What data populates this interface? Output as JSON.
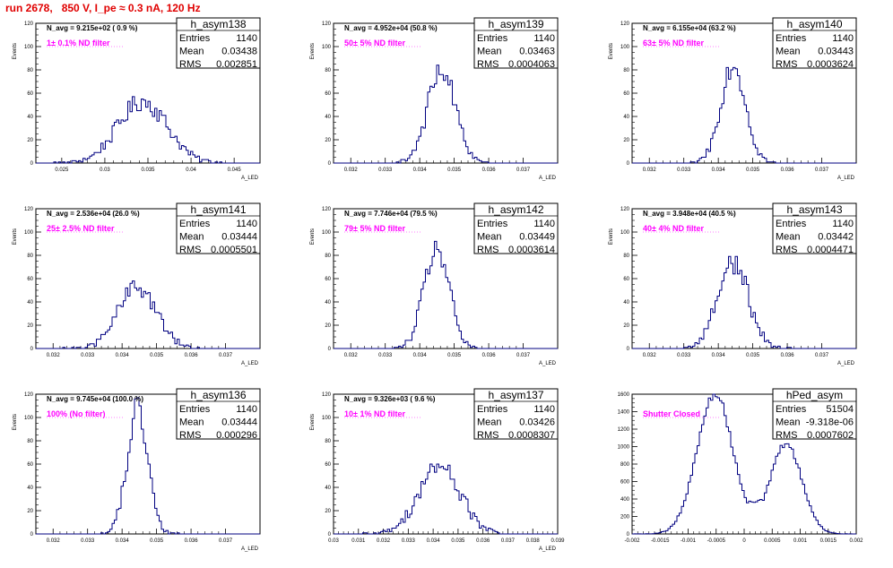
{
  "page": {
    "title": "run 2678,   850 V, I_pe ≈ 0.3 nA, 120 Hz",
    "title_color": "#e00000"
  },
  "colors": {
    "hist": "#000080",
    "annotation": "#ff00ff",
    "frame": "#000000"
  },
  "chart_data": [
    {
      "type": "histogram",
      "name": "h_asym138",
      "ylabel": "Events",
      "xlabel": "A_LED",
      "stats": {
        "Entries": "1140",
        "Mean": "0.03438",
        "RMS": "0.002851"
      },
      "n_avg_text": "N_avg = 9.215e+02 ( 0.9 %)",
      "annotation": "1± 0.1% ND filter",
      "xlim": [
        0.022,
        0.048
      ],
      "ylim": [
        0,
        120
      ],
      "xticks": [
        "0.025",
        "0.03",
        "0.035",
        "0.04",
        "0.045"
      ],
      "xtick_values": [
        0.025,
        0.03,
        0.035,
        0.04,
        0.045
      ],
      "yticks": [
        "0",
        "20",
        "40",
        "60",
        "80",
        "100",
        "120"
      ],
      "ytick_values": [
        0,
        20,
        40,
        60,
        80,
        100,
        120
      ],
      "dist": {
        "mean": 0.03438,
        "rms": 0.002851,
        "entries": 1140,
        "peak": 53
      }
    },
    {
      "type": "histogram",
      "name": "h_asym139",
      "ylabel": "Events",
      "xlabel": "A_LED",
      "stats": {
        "Entries": "1140",
        "Mean": "0.03463",
        "RMS": "0.0004063"
      },
      "n_avg_text": "N_avg = 4.952e+04 (50.8 %)",
      "annotation": "50± 5% ND filter",
      "xlim": [
        0.0315,
        0.038
      ],
      "ylim": [
        0,
        120
      ],
      "xticks": [
        "0.032",
        "0.033",
        "0.034",
        "0.035",
        "0.036",
        "0.037"
      ],
      "xtick_values": [
        0.032,
        0.033,
        0.034,
        0.035,
        0.036,
        0.037
      ],
      "yticks": [
        "0",
        "20",
        "40",
        "60",
        "80",
        "100",
        "120"
      ],
      "ytick_values": [
        0,
        20,
        40,
        60,
        80,
        100,
        120
      ],
      "dist": {
        "mean": 0.03463,
        "rms": 0.0004063,
        "entries": 1140,
        "peak": 79
      }
    },
    {
      "type": "histogram",
      "name": "h_asym140",
      "ylabel": "Events",
      "xlabel": "A_LED",
      "stats": {
        "Entries": "1140",
        "Mean": "0.03443",
        "RMS": "0.0003624"
      },
      "n_avg_text": "N_avg = 6.155e+04 (63.2 %)",
      "annotation": "63± 5% ND filter",
      "xlim": [
        0.0315,
        0.038
      ],
      "ylim": [
        0,
        120
      ],
      "xticks": [
        "0.032",
        "0.033",
        "0.034",
        "0.035",
        "0.036",
        "0.037"
      ],
      "xtick_values": [
        0.032,
        0.033,
        0.034,
        0.035,
        0.036,
        0.037
      ],
      "yticks": [
        "0",
        "20",
        "40",
        "60",
        "80",
        "100",
        "120"
      ],
      "ytick_values": [
        0,
        20,
        40,
        60,
        80,
        100,
        120
      ],
      "dist": {
        "mean": 0.03443,
        "rms": 0.0003624,
        "entries": 1140,
        "peak": 85
      }
    },
    {
      "type": "histogram",
      "name": "h_asym141",
      "ylabel": "Events",
      "xlabel": "A_LED",
      "stats": {
        "Entries": "1140",
        "Mean": "0.03444",
        "RMS": "0.0005501"
      },
      "n_avg_text": "N_avg = 2.536e+04 (26.0 %)",
      "annotation": "25± 2.5% ND filter",
      "xlim": [
        0.0315,
        0.038
      ],
      "ylim": [
        0,
        120
      ],
      "xticks": [
        "0.032",
        "0.033",
        "0.034",
        "0.035",
        "0.036",
        "0.037"
      ],
      "xtick_values": [
        0.032,
        0.033,
        0.034,
        0.035,
        0.036,
        0.037
      ],
      "yticks": [
        "0",
        "20",
        "40",
        "60",
        "80",
        "100",
        "120"
      ],
      "ytick_values": [
        0,
        20,
        40,
        60,
        80,
        100,
        120
      ],
      "dist": {
        "mean": 0.03444,
        "rms": 0.0005501,
        "entries": 1140,
        "peak": 53
      }
    },
    {
      "type": "histogram",
      "name": "h_asym142",
      "ylabel": "Events",
      "xlabel": "A_LED",
      "stats": {
        "Entries": "1140",
        "Mean": "0.03449",
        "RMS": "0.0003614"
      },
      "n_avg_text": "N_avg = 7.746e+04 (79.5 %)",
      "annotation": "79± 5% ND filter",
      "xlim": [
        0.0315,
        0.038
      ],
      "ylim": [
        0,
        120
      ],
      "xticks": [
        "0.032",
        "0.033",
        "0.034",
        "0.035",
        "0.036",
        "0.037"
      ],
      "xtick_values": [
        0.032,
        0.033,
        0.034,
        0.035,
        0.036,
        0.037
      ],
      "yticks": [
        "0",
        "20",
        "40",
        "60",
        "80",
        "100",
        "120"
      ],
      "ytick_values": [
        0,
        20,
        40,
        60,
        80,
        100,
        120
      ],
      "dist": {
        "mean": 0.03449,
        "rms": 0.0003614,
        "entries": 1140,
        "peak": 86
      }
    },
    {
      "type": "histogram",
      "name": "h_asym143",
      "ylabel": "Events",
      "xlabel": "A_LED",
      "stats": {
        "Entries": "1140",
        "Mean": "0.03442",
        "RMS": "0.0004471"
      },
      "n_avg_text": "N_avg = 3.948e+04 (40.5 %)",
      "annotation": "40± 4% ND filter",
      "xlim": [
        0.0315,
        0.038
      ],
      "ylim": [
        0,
        120
      ],
      "xticks": [
        "0.032",
        "0.033",
        "0.034",
        "0.035",
        "0.036",
        "0.037"
      ],
      "xtick_values": [
        0.032,
        0.033,
        0.034,
        0.035,
        0.036,
        0.037
      ],
      "yticks": [
        "0",
        "20",
        "40",
        "60",
        "80",
        "100",
        "120"
      ],
      "ytick_values": [
        0,
        20,
        40,
        60,
        80,
        100,
        120
      ],
      "dist": {
        "mean": 0.03442,
        "rms": 0.0004471,
        "entries": 1140,
        "peak": 74
      }
    },
    {
      "type": "histogram",
      "name": "h_asym136",
      "ylabel": "Events",
      "xlabel": "A_LED",
      "stats": {
        "Entries": "1140",
        "Mean": "0.03444",
        "RMS": "0.000296"
      },
      "n_avg_text": "N_avg = 9.745e+04 (100.0 %)",
      "annotation": "100% (No filter)",
      "xlim": [
        0.0315,
        0.038
      ],
      "ylim": [
        0,
        120
      ],
      "xticks": [
        "0.032",
        "0.033",
        "0.034",
        "0.035",
        "0.036",
        "0.037"
      ],
      "xtick_values": [
        0.032,
        0.033,
        0.034,
        0.035,
        0.036,
        0.037
      ],
      "yticks": [
        "0",
        "20",
        "40",
        "60",
        "80",
        "100",
        "120"
      ],
      "ytick_values": [
        0,
        20,
        40,
        60,
        80,
        100,
        120
      ],
      "dist": {
        "mean": 0.03444,
        "rms": 0.000296,
        "entries": 1140,
        "peak": 106
      }
    },
    {
      "type": "histogram",
      "name": "h_asym137",
      "ylabel": "Events",
      "xlabel": "A_LED",
      "stats": {
        "Entries": "1140",
        "Mean": "0.03426",
        "RMS": "0.0008307"
      },
      "n_avg_text": "N_avg = 9.326e+03 ( 9.6 %)",
      "annotation": "10± 1% ND filter",
      "xlim": [
        0.03,
        0.039
      ],
      "ylim": [
        0,
        120
      ],
      "xticks": [
        "0.03",
        "0.031",
        "0.032",
        "0.033",
        "0.034",
        "0.035",
        "0.036",
        "0.037",
        "0.038",
        "0.039"
      ],
      "xtick_values": [
        0.03,
        0.031,
        0.032,
        0.033,
        0.034,
        0.035,
        0.036,
        0.037,
        0.038,
        0.039
      ],
      "yticks": [
        "0",
        "20",
        "40",
        "60",
        "80",
        "100",
        "120"
      ],
      "ytick_values": [
        0,
        20,
        40,
        60,
        80,
        100,
        120
      ],
      "dist": {
        "mean": 0.03426,
        "rms": 0.0008307,
        "entries": 1140,
        "peak": 58
      }
    },
    {
      "type": "histogram",
      "name": "hPed_asym",
      "ylabel": "",
      "xlabel": "",
      "stats": {
        "Entries": "51504",
        "Mean": "-9.318e-06",
        "RMS": "0.0007602"
      },
      "n_avg_text": "",
      "annotation": "Shutter Closed",
      "xlim": [
        -0.002,
        0.002
      ],
      "ylim": [
        0,
        1600
      ],
      "xticks": [
        "-0.002",
        "-0.0015",
        "-0.001",
        "-0.0005",
        "0",
        "0.0005",
        "0.001",
        "0.0015",
        "0.002"
      ],
      "xtick_values": [
        -0.002,
        -0.0015,
        -0.001,
        -0.0005,
        0,
        0.0005,
        0.001,
        0.0015,
        0.002
      ],
      "yticks": [
        "0",
        "200",
        "400",
        "600",
        "800",
        "1000",
        "1200",
        "1400",
        "1600"
      ],
      "ytick_values": [
        0,
        200,
        400,
        600,
        800,
        1000,
        1200,
        1400,
        1600
      ],
      "dist": {
        "bimodal": true,
        "components": [
          {
            "mean": -0.00052,
            "sigma": 0.00032,
            "peak": 1600
          },
          {
            "mean": 0.00075,
            "sigma": 0.00028,
            "peak": 1030
          }
        ],
        "floor": 380
      }
    }
  ]
}
